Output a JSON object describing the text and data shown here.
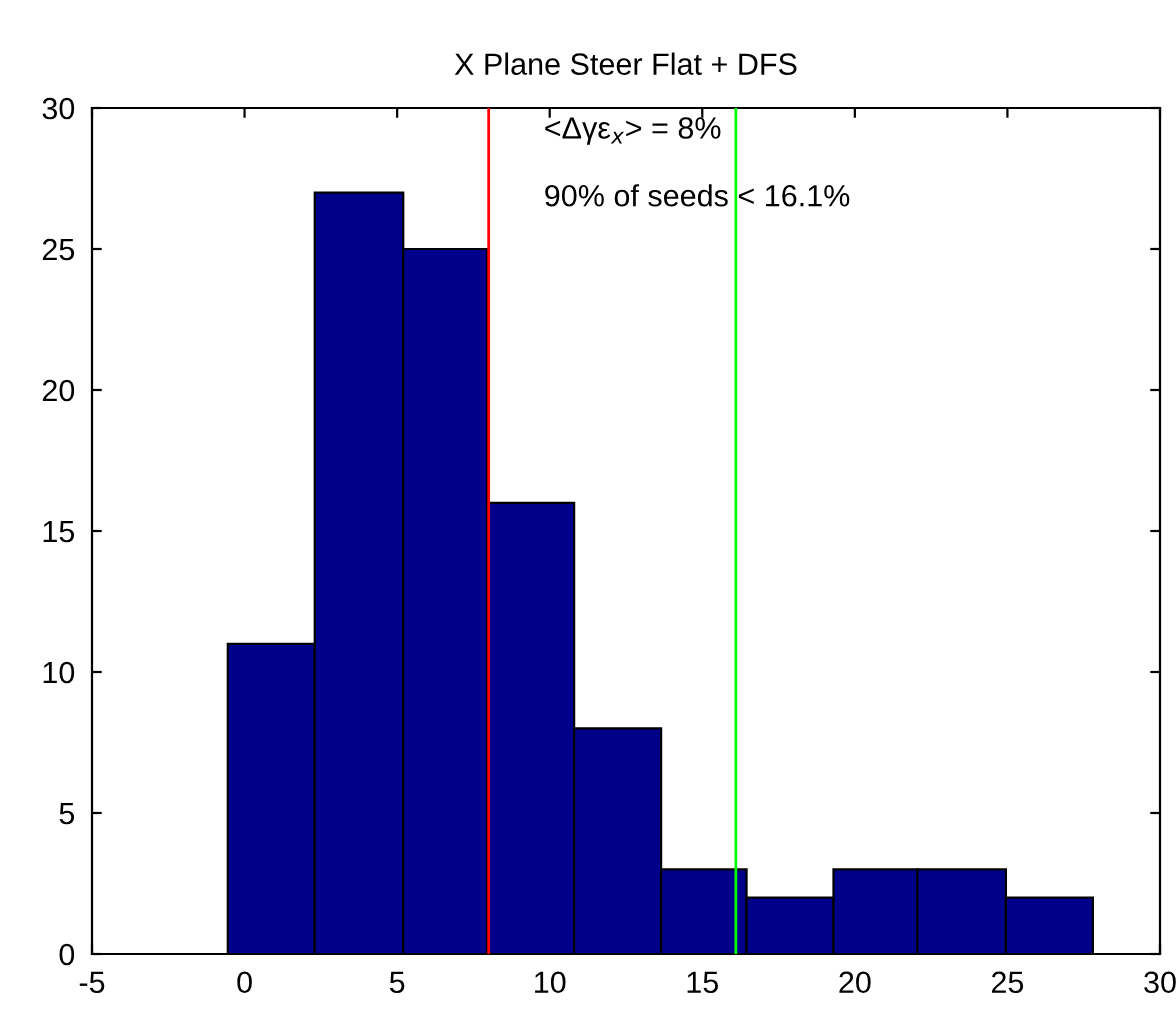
{
  "chart_data": {
    "type": "histogram",
    "title": "X Plane Steer Flat + DFS",
    "bins": [
      -0.55,
      2.3,
      5.2,
      7.95,
      10.8,
      13.65,
      16.45,
      19.3,
      22.05,
      24.95,
      27.8
    ],
    "values": [
      11,
      27,
      25,
      16,
      8,
      3,
      2,
      3,
      3,
      2
    ],
    "color": "#00008b",
    "xlim": [
      -5,
      30
    ],
    "xticks": [
      -5,
      0,
      5,
      10,
      15,
      20,
      25,
      30
    ],
    "ylim": [
      0,
      30
    ],
    "yticks": [
      0,
      5,
      10,
      15,
      20,
      25,
      30
    ],
    "grid": false,
    "ref_lines": [
      {
        "axis": "x",
        "value": 8,
        "color": "#ff0000"
      },
      {
        "axis": "x",
        "value": 16.1,
        "color": "#00ff00"
      }
    ],
    "annotations": [
      "<Δγε$_{x}$> = 8%",
      "90% of seeds < 16.1%"
    ]
  }
}
